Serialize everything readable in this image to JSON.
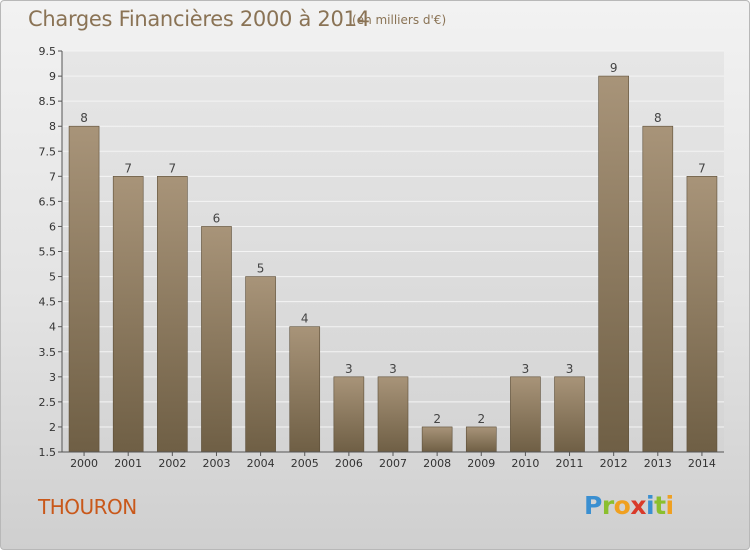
{
  "header": {
    "title": "Charges Financières 2000 à 2014",
    "subtitle": "(en milliers d'€)"
  },
  "footer": {
    "commune": "THOURON",
    "logo_letters": [
      "P",
      "r",
      "o",
      "x",
      "i",
      "t",
      "i"
    ]
  },
  "colors": {
    "bar_light": "#a89479",
    "bar_dark": "#6f5f45",
    "title": "#8a7355",
    "commune": "#c9581a"
  },
  "chart_data": {
    "type": "bar",
    "title": "Charges Financières 2000 à 2014",
    "subtitle": "(en milliers d'€)",
    "categories": [
      "2000",
      "2001",
      "2002",
      "2003",
      "2004",
      "2005",
      "2006",
      "2007",
      "2008",
      "2009",
      "2010",
      "2011",
      "2012",
      "2013",
      "2014"
    ],
    "values": [
      8,
      7,
      7,
      6,
      5,
      4,
      3,
      3,
      2,
      2,
      3,
      3,
      9,
      8,
      7
    ],
    "data_labels": [
      "8",
      "7",
      "7",
      "6",
      "5",
      "4",
      "3",
      "3",
      "2",
      "2",
      "3",
      "3",
      "9",
      "8",
      "7"
    ],
    "ylim": [
      1.5,
      9.5
    ],
    "yticks": [
      "1.5",
      "2",
      "2.5",
      "3",
      "3.5",
      "4",
      "4.5",
      "5",
      "5.5",
      "6",
      "6.5",
      "7",
      "7.5",
      "8",
      "8.5",
      "9",
      "9.5"
    ],
    "grid": true,
    "legend": "none"
  }
}
